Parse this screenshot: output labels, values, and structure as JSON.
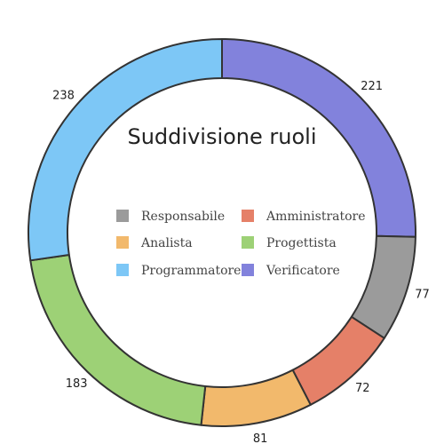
{
  "chart_data": {
    "type": "pie",
    "title": "Suddivisione ruoli",
    "categories": [
      "Responsabile",
      "Amministratore",
      "Analista",
      "Progettista",
      "Programmatore",
      "Verificatore"
    ],
    "slices": [
      {
        "label": "Verificatore",
        "value": 221,
        "color": "#6c6cd6"
      },
      {
        "label": "Responsabile",
        "value": 77,
        "color": "#8a8a8a"
      },
      {
        "label": "Amministratore",
        "value": 72,
        "color": "#e06a4e"
      },
      {
        "label": "Analista",
        "value": 81,
        "color": "#f0ad52"
      },
      {
        "label": "Progettista",
        "value": 183,
        "color": "#8cc95e"
      },
      {
        "label": "Programmatore",
        "value": 238,
        "color": "#66bdf5"
      }
    ],
    "legend": [
      {
        "label": "Responsabile",
        "color": "#8a8a8a"
      },
      {
        "label": "Amministratore",
        "color": "#e06a4e"
      },
      {
        "label": "Analista",
        "color": "#f0ad52"
      },
      {
        "label": "Progettista",
        "color": "#8cc95e"
      },
      {
        "label": "Programmatore",
        "color": "#66bdf5"
      },
      {
        "label": "Verificatore",
        "color": "#6c6cd6"
      }
    ],
    "donut": true,
    "legend_placement": "center"
  }
}
